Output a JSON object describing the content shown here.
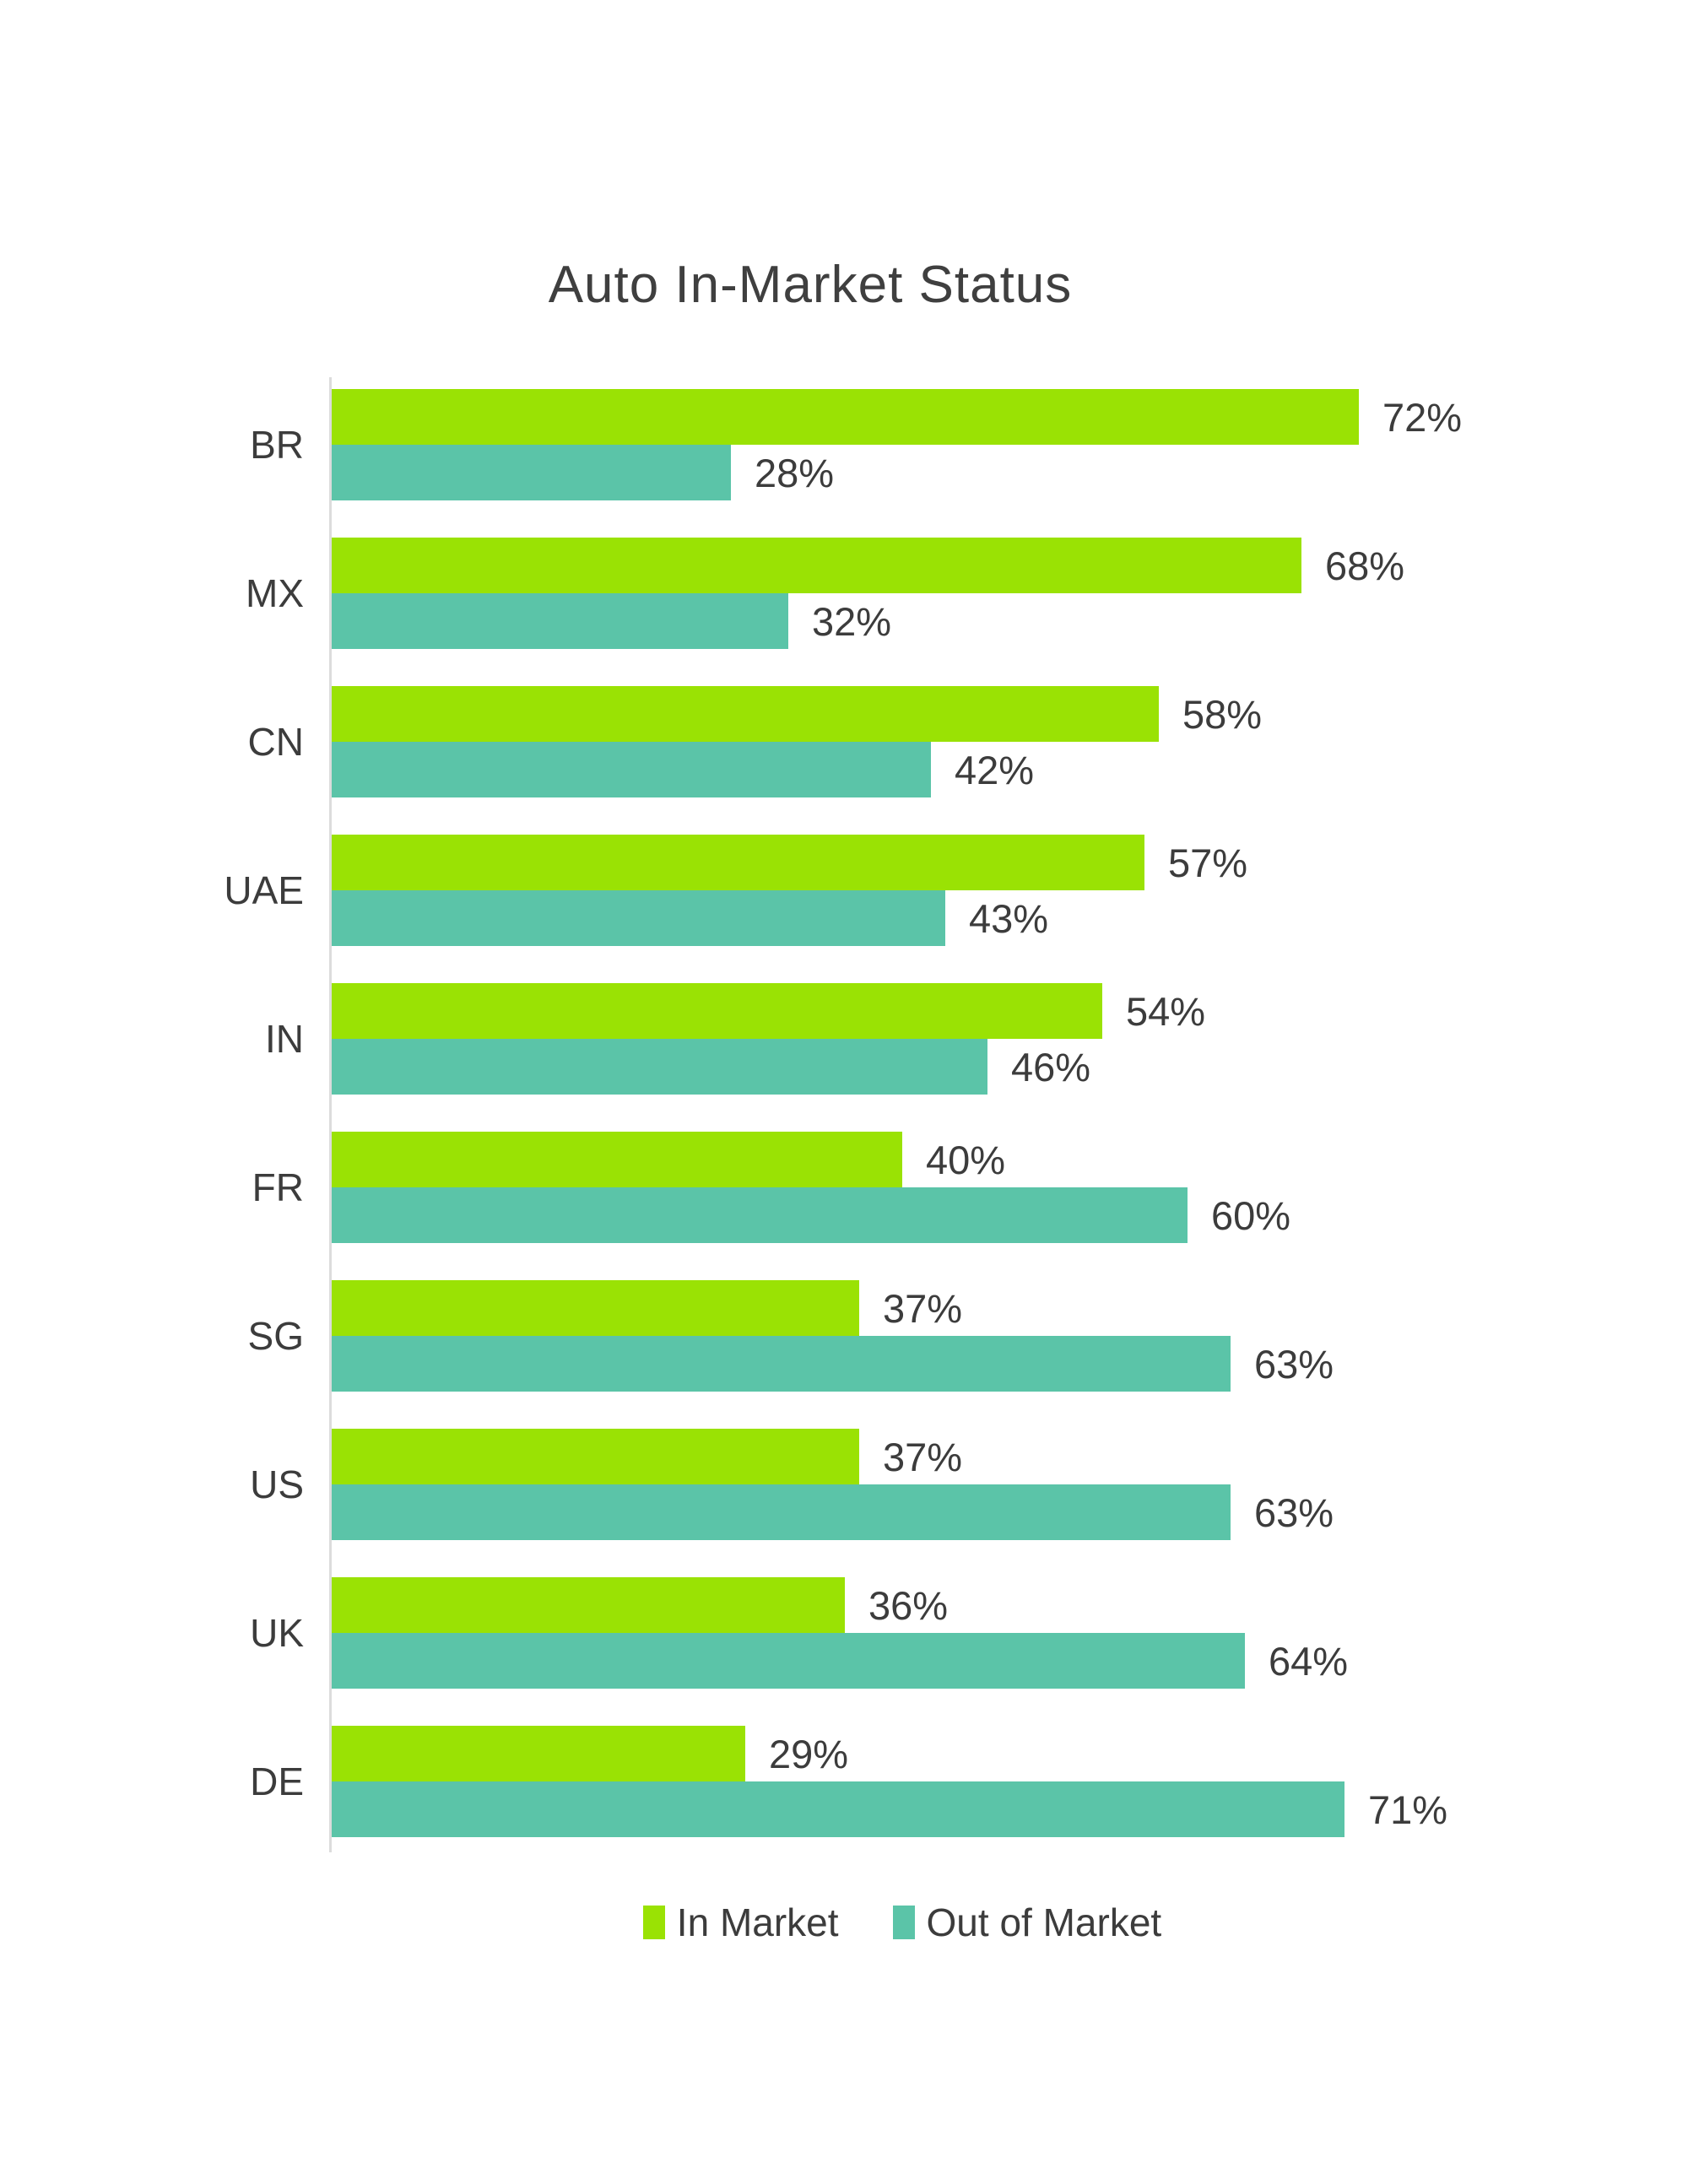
{
  "title": "Auto In-Market Status",
  "chart_data": {
    "type": "bar",
    "orientation": "horizontal",
    "title": "Auto In-Market Status",
    "categories": [
      "BR",
      "MX",
      "CN",
      "UAE",
      "IN",
      "FR",
      "SG",
      "US",
      "UK",
      "DE"
    ],
    "series": [
      {
        "name": "In Market",
        "color": "#9AE204",
        "values": [
          72,
          68,
          58,
          57,
          54,
          40,
          37,
          37,
          36,
          29
        ]
      },
      {
        "name": "Out of Market",
        "color": "#5BC4A8",
        "values": [
          28,
          32,
          42,
          43,
          46,
          60,
          63,
          63,
          64,
          71
        ]
      }
    ],
    "value_labels": [
      [
        "72%",
        "68%",
        "58%",
        "57%",
        "54%",
        "40%",
        "37%",
        "37%",
        "36%",
        "29%"
      ],
      [
        "28%",
        "32%",
        "42%",
        "43%",
        "46%",
        "60%",
        "63%",
        "63%",
        "64%",
        "71%"
      ]
    ],
    "xlabel": "",
    "ylabel": "",
    "xlim": [
      0,
      80
    ],
    "grid": false,
    "legend_position": "bottom"
  },
  "legend": {
    "items": [
      {
        "label": "In Market",
        "color": "#9AE204"
      },
      {
        "label": "Out of Market",
        "color": "#5BC4A8"
      }
    ]
  },
  "colors": {
    "background": "#FFFFFF",
    "text": "#3C3C3C",
    "axis_line": "#DCDCDC"
  }
}
